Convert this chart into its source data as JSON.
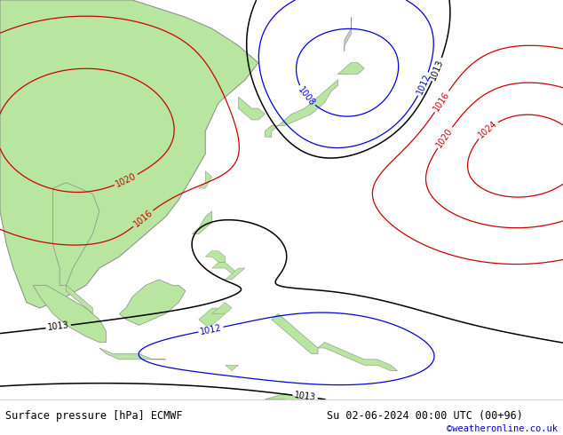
{
  "title_left": "Surface pressure [hPa] ECMWF",
  "title_right": "Su 02-06-2024 00:00 UTC (00+96)",
  "credit": "©weatheronline.co.uk",
  "land_color": "#b8e6a0",
  "sea_color": "#dde8f0",
  "map_extent": [
    90,
    175,
    -15,
    55
  ],
  "isobars_blue_color": "#0000dd",
  "isobars_black_color": "#000000",
  "isobars_red_color": "#cc0000",
  "blue_levels": [
    1008,
    1012
  ],
  "black_levels": [
    1013
  ],
  "red_levels": [
    1016,
    1020,
    1024
  ],
  "label_fontsize": 7,
  "credit_color": "#0000cc",
  "bottom_text_color": "#000000"
}
